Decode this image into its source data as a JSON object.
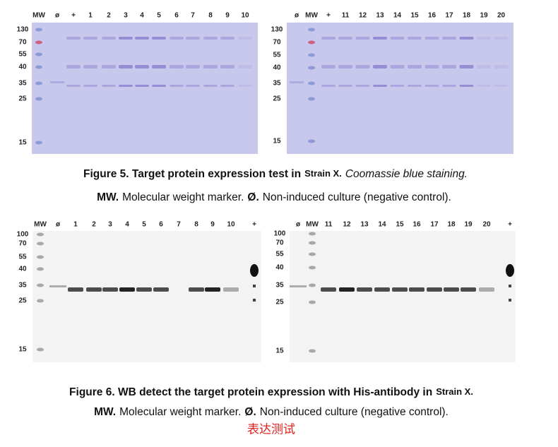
{
  "figure5": {
    "gel_left": {
      "lanes": [
        "MW",
        "ø",
        "+",
        "1",
        "2",
        "3",
        "4",
        "5",
        "6",
        "7",
        "8",
        "9",
        "10"
      ],
      "markers": [
        "130",
        "70",
        "55",
        "40",
        "35",
        "25",
        "15"
      ]
    },
    "gel_right": {
      "lanes": [
        "ø",
        "MW",
        "+",
        "11",
        "12",
        "13",
        "14",
        "15",
        "16",
        "17",
        "18",
        "19",
        "20"
      ],
      "markers": [
        "130",
        "70",
        "55",
        "40",
        "35",
        "25",
        "15"
      ]
    },
    "caption": {
      "title": "Figure 5. Target protein expression test in",
      "strain": "Strain X.",
      "stain": "Coomassie blue staining.",
      "mw_label": "MW.",
      "mw_text": "Molecular weight marker.",
      "neg_label": "Ø.",
      "neg_text": "Non-induced culture (negative control)."
    }
  },
  "figure6": {
    "gel_left": {
      "lanes": [
        "MW",
        "ø",
        "1",
        "2",
        "3",
        "4",
        "5",
        "6",
        "7",
        "8",
        "9",
        "10",
        "+"
      ],
      "markers": [
        "100",
        "70",
        "55",
        "40",
        "35",
        "25",
        "15"
      ]
    },
    "gel_right": {
      "lanes": [
        "ø",
        "MW",
        "11",
        "12",
        "13",
        "14",
        "15",
        "16",
        "17",
        "18",
        "19",
        "20",
        "+"
      ],
      "markers": [
        "100",
        "70",
        "55",
        "40",
        "35",
        "25",
        "15"
      ]
    },
    "caption": {
      "title": "Figure 6. WB detect the target protein expression with His-antibody in",
      "strain": "Strain X.",
      "mw_label": "MW.",
      "mw_text": "Molecular weight marker.",
      "neg_label": "Ø.",
      "neg_text": "Non-induced culture (negative control)."
    }
  },
  "footer": "表达测试"
}
